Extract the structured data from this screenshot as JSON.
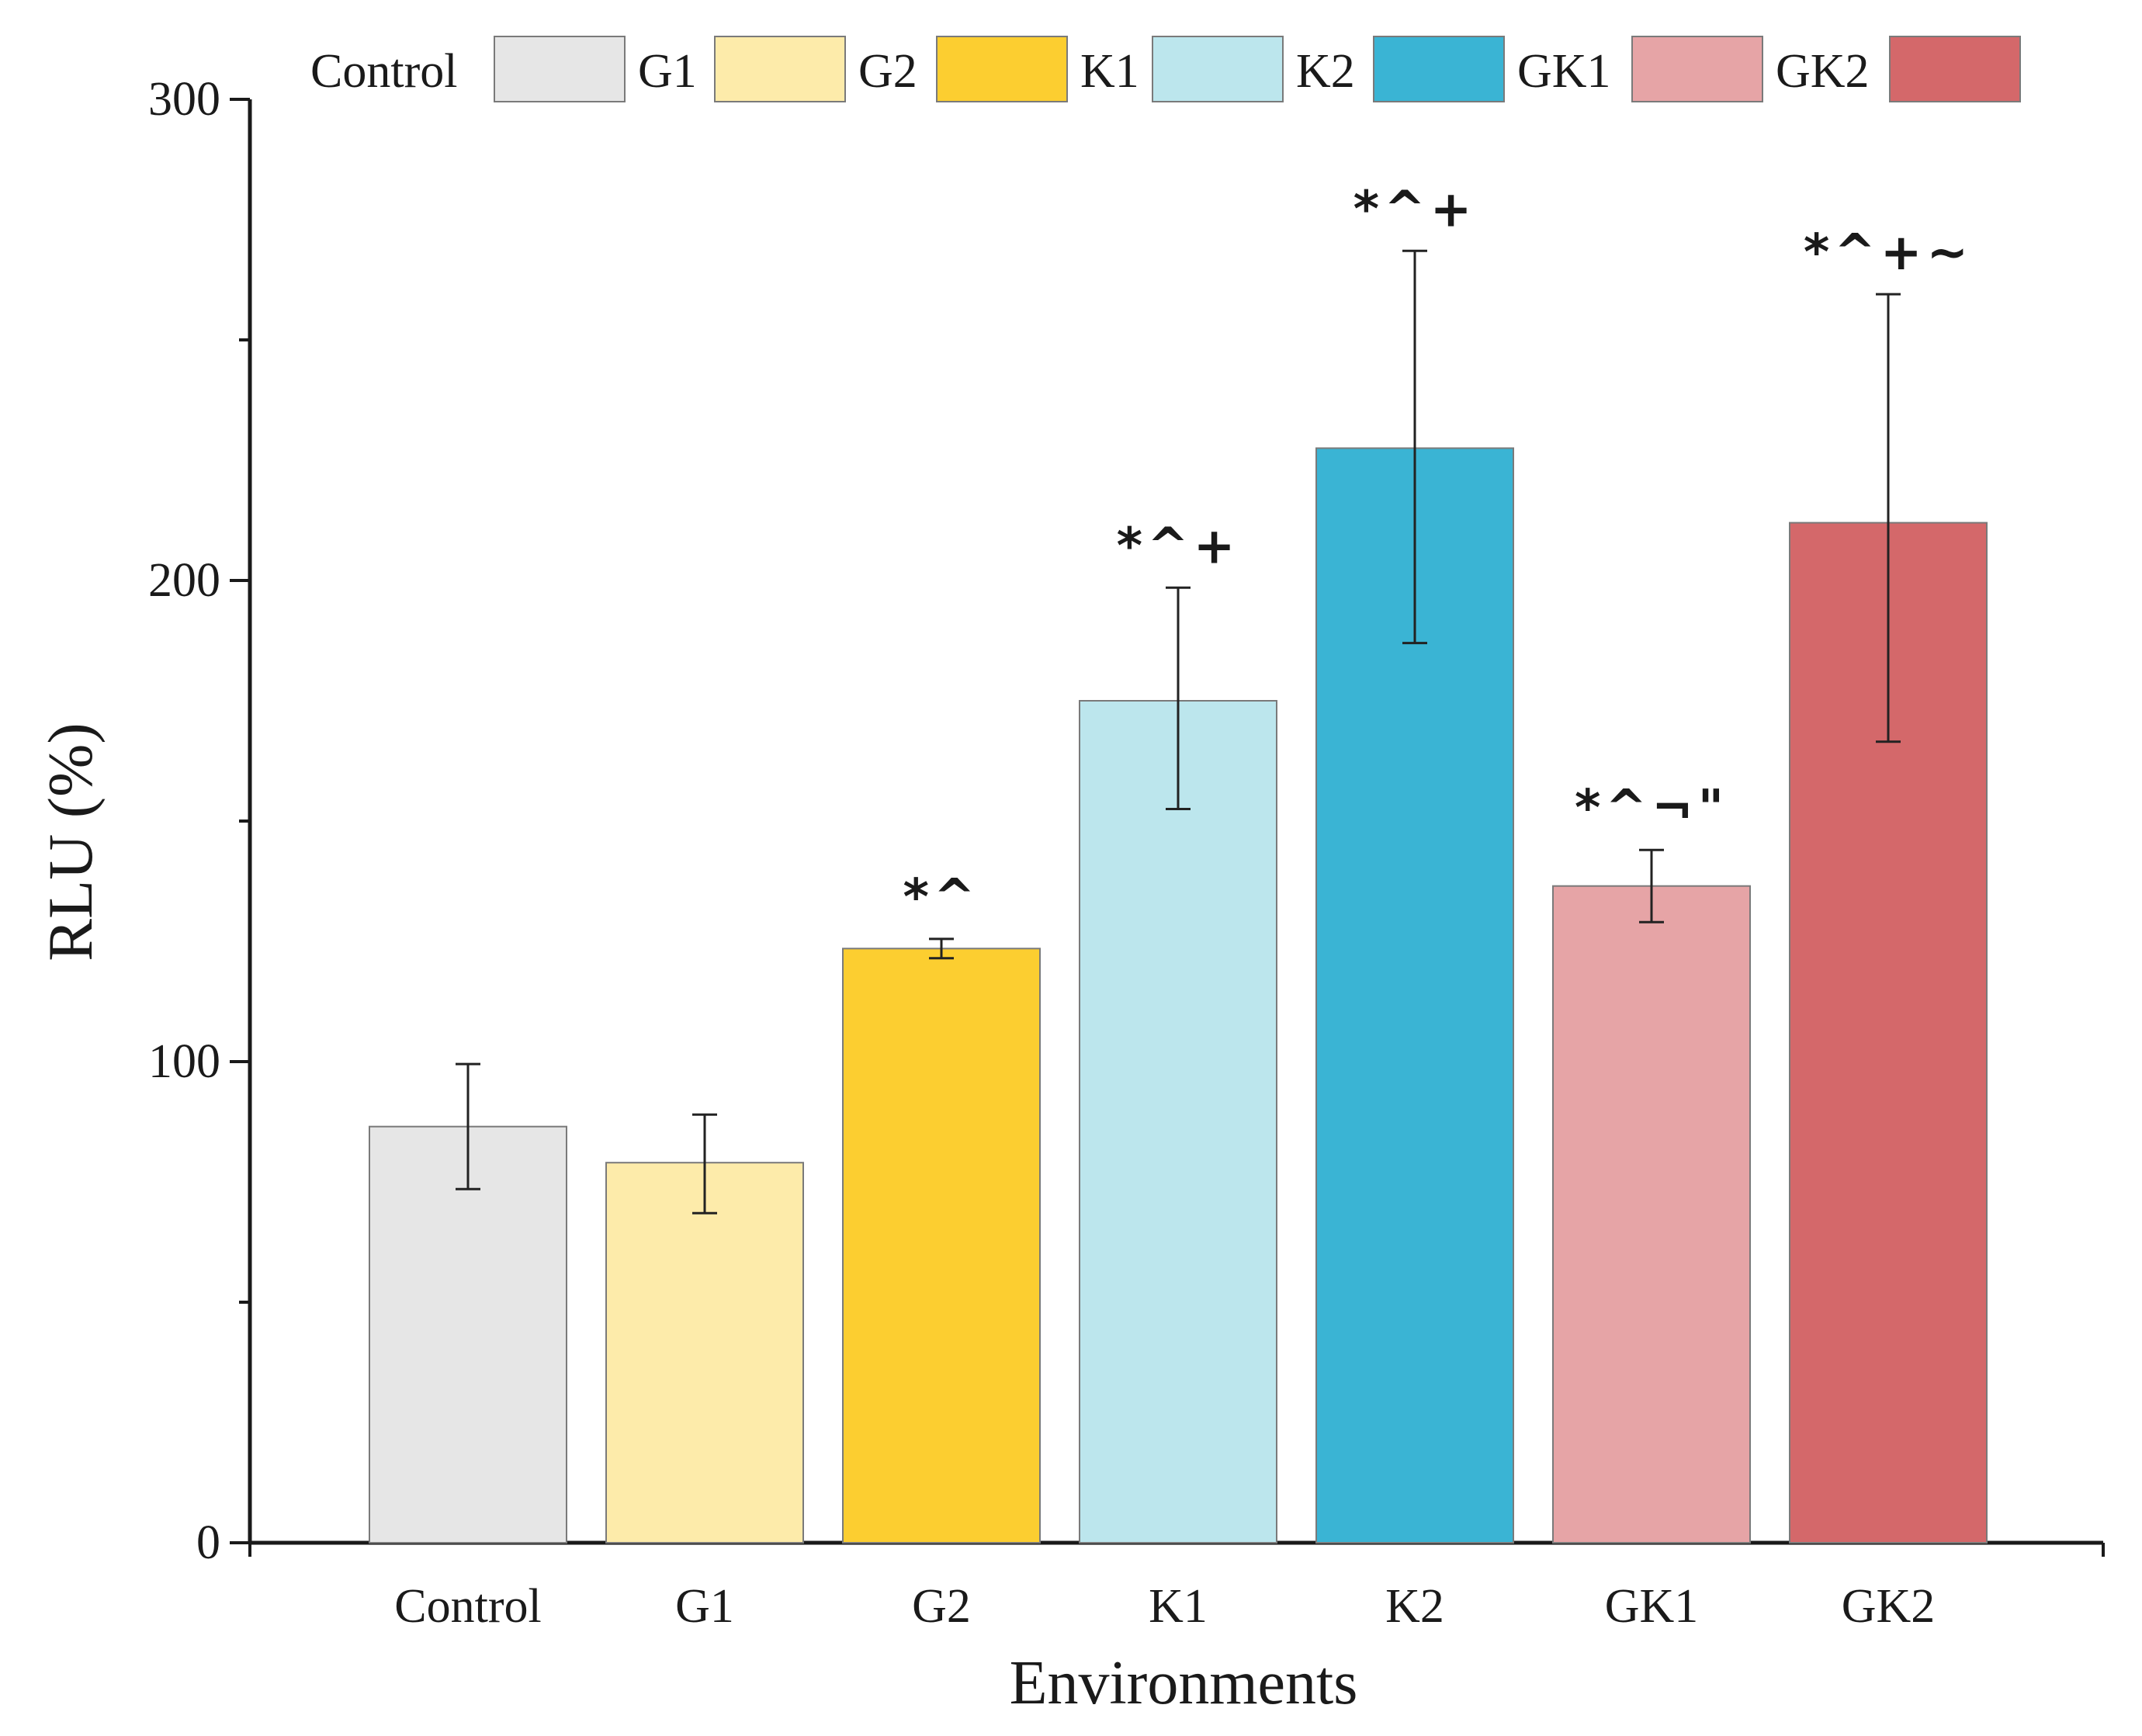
{
  "chart_data": {
    "type": "bar",
    "title": "",
    "xlabel": "Environments",
    "ylabel": "RLU (%)",
    "ylim": [
      0,
      300
    ],
    "y_ticks": [
      0,
      100,
      200,
      300
    ],
    "y_minor_ticks": [
      50,
      150,
      250
    ],
    "legend_position": "top",
    "categories": [
      "Control",
      "G1",
      "G2",
      "K1",
      "K2",
      "GK1",
      "GK2"
    ],
    "series": [
      {
        "name": "RLU",
        "values": [
          86.5,
          79,
          123.5,
          175,
          227.5,
          136.5,
          212
        ],
        "error_low": [
          73.5,
          68.5,
          121.5,
          152.5,
          187,
          129,
          166.5
        ],
        "error_high": [
          99.5,
          89,
          125.5,
          198.5,
          268.5,
          144,
          259.5
        ],
        "colors": [
          "#e6e6e6",
          "#fdebaa",
          "#fcce30",
          "#bce6ed",
          "#3ab4d4",
          "#e6a4a6",
          "#d4686a"
        ],
        "annotations": [
          "",
          "",
          "*^",
          "*^+",
          "*^+",
          "*^¬\"",
          "*^+~"
        ]
      }
    ],
    "legend": [
      {
        "label": "Control",
        "color": "#e6e6e6"
      },
      {
        "label": "G1",
        "color": "#fdebaa"
      },
      {
        "label": "G2",
        "color": "#fcce30"
      },
      {
        "label": "K1",
        "color": "#bce6ed"
      },
      {
        "label": "K2",
        "color": "#3ab4d4"
      },
      {
        "label": "GK1",
        "color": "#e6a4a6"
      },
      {
        "label": "GK2",
        "color": "#d4686a"
      }
    ],
    "bar_outline_color": "#7a7a7a",
    "axis_color": "#1a1a1a"
  }
}
